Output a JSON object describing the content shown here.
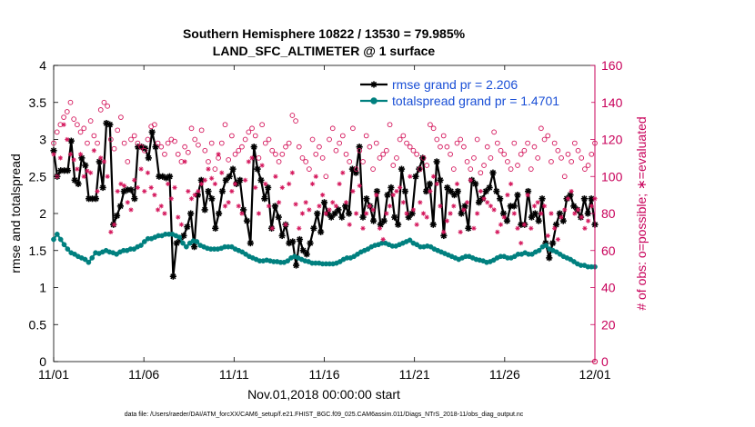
{
  "chart_data": {
    "type": "line",
    "title": [
      "Southern Hemisphere 10822 / 13530 = 79.985%",
      "LAND_SFC_ALTIMETER @ 1 surface"
    ],
    "xlabel": "Nov.01,2018 00:00:00 start",
    "ylabel": "rmse and totalspread",
    "ylabel_right": "# of obs: o=possible; ∗=evaluated",
    "footnote": "data file: /Users/raeder/DAI/ATM_forcXX/CAM6_setup/f.e21.FHIST_BGC.f09_025.CAM6assim.011/Diags_NTrS_2018-11/obs_diag_output.nc",
    "x_ticks": [
      "11/01",
      "11/06",
      "11/11",
      "11/16",
      "11/21",
      "11/26",
      "12/01"
    ],
    "x_range_days": [
      0,
      30
    ],
    "ylim": [
      0,
      4
    ],
    "y_ticks": [
      "0",
      "0.5",
      "1",
      "1.5",
      "2",
      "2.5",
      "3",
      "3.5",
      "4"
    ],
    "ylim_right": [
      0,
      160
    ],
    "y_ticks_right": [
      "0",
      "20",
      "40",
      "60",
      "80",
      "100",
      "120",
      "140",
      "160"
    ],
    "grid": false,
    "legend": {
      "placement": "top-right",
      "entries": [
        {
          "label": "rmse grand pr = 2.206",
          "color": "#000000",
          "marker": "asterisk"
        },
        {
          "label": "totalspread grand pr = 1.4701",
          "color": "#00807f",
          "marker": "circle"
        }
      ]
    },
    "series": [
      {
        "name": "rmse grand pr = 2.206",
        "axis": "left",
        "color": "#000000",
        "marker": "asterisk",
        "values": [
          2.85,
          2.5,
          2.58,
          2.58,
          2.58,
          2.98,
          2.45,
          2.4,
          2.75,
          2.65,
          2.2,
          2.2,
          2.2,
          2.7,
          2.35,
          3.22,
          3.2,
          1.85,
          1.97,
          2.1,
          2.3,
          2.32,
          2.32,
          2.2,
          2.9,
          2.9,
          2.88,
          2.75,
          3.1,
          2.9,
          2.5,
          2.5,
          2.48,
          2.5,
          1.15,
          1.6,
          1.65,
          1.7,
          1.82,
          2.0,
          1.55,
          2.25,
          2.45,
          2.05,
          2.3,
          2.2,
          1.8,
          2.0,
          2.3,
          2.45,
          2.5,
          2.6,
          2.4,
          2.45,
          2.05,
          1.9,
          1.6,
          2.9,
          2.6,
          2.45,
          2.2,
          2.35,
          1.8,
          2.1,
          1.95,
          1.7,
          1.85,
          1.6,
          1.62,
          1.3,
          1.65,
          1.5,
          1.45,
          1.6,
          1.8,
          2.0,
          1.75,
          2.15,
          2.0,
          1.95,
          2.0,
          2.05,
          1.95,
          2.1,
          2.0,
          2.6,
          2.55,
          2.9,
          1.95,
          2.2,
          2.1,
          1.9,
          2.3,
          1.85,
          1.9,
          2.25,
          2.35,
          1.95,
          1.85,
          2.6,
          2.3,
          1.95,
          2.0,
          2.5,
          2.6,
          2.75,
          2.3,
          2.4,
          1.85,
          2.7,
          2.45,
          1.7,
          2.35,
          2.3,
          2.25,
          2.3,
          2.0,
          2.1,
          1.8,
          2.45,
          2.4,
          2.15,
          2.2,
          2.3,
          2.35,
          2.55,
          2.3,
          2.2,
          2.0,
          1.9,
          2.1,
          2.1,
          2.25,
          1.85,
          1.85,
          2.3,
          1.95,
          2.0,
          1.9,
          2.2,
          1.6,
          1.4,
          1.6,
          1.85,
          2.0,
          1.9,
          2.2,
          2.25,
          2.1,
          2.05,
          1.95,
          2.2,
          2.0,
          2.2,
          1.85
        ]
      },
      {
        "name": "totalspread grand pr = 1.4701",
        "axis": "left",
        "color": "#00807f",
        "marker": "circle",
        "values": [
          1.65,
          1.72,
          1.65,
          1.58,
          1.52,
          1.47,
          1.45,
          1.42,
          1.4,
          1.38,
          1.34,
          1.4,
          1.47,
          1.46,
          1.48,
          1.5,
          1.48,
          1.47,
          1.45,
          1.48,
          1.5,
          1.5,
          1.52,
          1.52,
          1.55,
          1.57,
          1.62,
          1.66,
          1.66,
          1.68,
          1.7,
          1.7,
          1.72,
          1.72,
          1.72,
          1.7,
          1.68,
          1.6,
          1.55,
          1.6,
          1.63,
          1.62,
          1.57,
          1.55,
          1.53,
          1.52,
          1.52,
          1.52,
          1.53,
          1.55,
          1.55,
          1.55,
          1.52,
          1.5,
          1.48,
          1.45,
          1.42,
          1.4,
          1.38,
          1.36,
          1.36,
          1.37,
          1.36,
          1.35,
          1.35,
          1.34,
          1.34,
          1.36,
          1.4,
          1.42,
          1.4,
          1.38,
          1.36,
          1.35,
          1.33,
          1.33,
          1.33,
          1.32,
          1.32,
          1.32,
          1.32,
          1.33,
          1.35,
          1.38,
          1.4,
          1.4,
          1.42,
          1.45,
          1.48,
          1.5,
          1.52,
          1.55,
          1.57,
          1.58,
          1.6,
          1.6,
          1.58,
          1.56,
          1.56,
          1.58,
          1.6,
          1.62,
          1.64,
          1.6,
          1.58,
          1.55,
          1.55,
          1.56,
          1.55,
          1.52,
          1.5,
          1.48,
          1.46,
          1.44,
          1.42,
          1.4,
          1.38,
          1.4,
          1.42,
          1.42,
          1.4,
          1.38,
          1.37,
          1.36,
          1.34,
          1.35,
          1.37,
          1.4,
          1.42,
          1.42,
          1.4,
          1.4,
          1.42,
          1.45,
          1.45,
          1.47,
          1.45,
          1.45,
          1.48,
          1.5,
          1.55,
          1.57,
          1.52,
          1.5,
          1.48,
          1.45,
          1.42,
          1.4,
          1.38,
          1.35,
          1.32,
          1.3,
          1.3,
          1.28,
          1.28,
          1.28
        ]
      },
      {
        "name": "# of obs possible",
        "axis": "right",
        "color": "#d4145a",
        "marker": "open-circle",
        "values": [
          118,
          124,
          128,
          132,
          135,
          140,
          131,
          128,
          124,
          126,
          118,
          130,
          122,
          118,
          136,
          140,
          138,
          120,
          115,
          125,
          132,
          118,
          108,
          120,
          122,
          118,
          116,
          114,
          120,
          127,
          128,
          118,
          116,
          112,
          118,
          120,
          119,
          112,
          108,
          116,
          113,
          126,
          120,
          117,
          125,
          114,
          108,
          118,
          104,
          110,
          118,
          128,
          109,
          122,
          112,
          114,
          116,
          120,
          124,
          126,
          122,
          110,
          128,
          118,
          120,
          114,
          112,
          108,
          112,
          116,
          118,
          133,
          130,
          116,
          110,
          108,
          104,
          120,
          112,
          116,
          110,
          100,
          120,
          126,
          114,
          118,
          122,
          112,
          108,
          126,
          104,
          114,
          108,
          122,
          116,
          104,
          118,
          110,
          112,
          114,
          128,
          106,
          110,
          120,
          122,
          118,
          116,
          114,
          112,
          104,
          110,
          106,
          128,
          126,
          120,
          116,
          122,
          116,
          112,
          104,
          118,
          120,
          116,
          108,
          104,
          110,
          120,
          102,
          106,
          116,
          110,
          124,
          118,
          114,
          112,
          108,
          104,
          118,
          106,
          112,
          114,
          118,
          104,
          116,
          110,
          126,
          120,
          122,
          108,
          118,
          114,
          110,
          100,
          112,
          108,
          118,
          114,
          110,
          104,
          106,
          112,
          118
        ]
      },
      {
        "name": "# of obs evaluated",
        "axis": "right",
        "color": "#d4145a",
        "marker": "asterisk",
        "values": [
          112,
          100,
          110,
          128,
          120,
          112,
          109,
          104,
          112,
          100,
          103,
          102,
          114,
          92,
          110,
          108,
          100,
          70,
          74,
          92,
          96,
          95,
          86,
          82,
          98,
          94,
          104,
          92,
          102,
          94,
          90,
          82,
          84,
          80,
          96,
          88,
          94,
          78,
          74,
          108,
          92,
          88,
          90,
          92,
          96,
          98,
          104,
          99,
          96,
          112,
          102,
          84,
          86,
          92,
          96,
          84,
          80,
          98,
          108,
          110,
          94,
          80,
          106,
          96,
          84,
          72,
          100,
          86,
          94,
          74,
          96,
          102,
          85,
          72,
          80,
          86,
          82,
          96,
          100,
          84,
          90,
          80,
          82,
          86,
          84,
          96,
          102,
          86,
          74,
          92,
          80,
          95,
          72,
          80,
          84,
          82,
          90,
          72,
          66,
          80,
          84,
          90,
          92,
          94,
          86,
          80,
          100,
          82,
          74,
          86,
          80,
          78,
          92,
          100,
          96,
          84,
          70,
          76,
          80,
          84,
          96,
          70,
          82,
          86,
          98,
          72,
          80,
          92,
          88,
          86,
          84,
          82,
          70,
          74,
          78,
          90,
          96,
          80,
          72,
          64,
          74,
          90,
          72,
          84,
          86,
          80,
          84,
          68,
          80,
          72,
          66,
          78,
          82,
          88,
          92,
          80,
          82,
          78,
          72,
          76,
          84,
          88
        ]
      }
    ]
  }
}
